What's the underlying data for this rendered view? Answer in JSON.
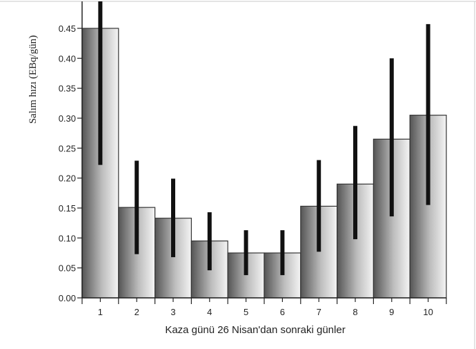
{
  "chart_data": {
    "type": "bar",
    "categories": [
      "1",
      "2",
      "3",
      "4",
      "5",
      "6",
      "7",
      "8",
      "9",
      "10"
    ],
    "values": [
      0.45,
      0.151,
      0.133,
      0.095,
      0.075,
      0.075,
      0.153,
      0.19,
      0.265,
      0.305
    ],
    "error_low": [
      0.222,
      0.073,
      0.068,
      0.046,
      0.038,
      0.038,
      0.077,
      0.098,
      0.136,
      0.155
    ],
    "error_high": [
      0.495,
      0.229,
      0.199,
      0.143,
      0.113,
      0.113,
      0.23,
      0.287,
      0.4,
      0.457
    ],
    "xlabel": "Kaza günü 26 Nisan'dan sonraki günler",
    "ylabel": "Salım hızı (EBq/gün)",
    "ylim": [
      0,
      0.495
    ],
    "yticks": [
      "0.00",
      "0.05",
      "0.10",
      "0.15",
      "0.20",
      "0.25",
      "0.30",
      "0.35",
      "0.40",
      "0.45"
    ],
    "grid": false,
    "legend": "none",
    "colors": {
      "bar_dark": "#555555",
      "bar_light": "#f4f4f4",
      "error_bar": "#111111",
      "axis": "#222222",
      "frame": "#bbbbbb"
    }
  }
}
